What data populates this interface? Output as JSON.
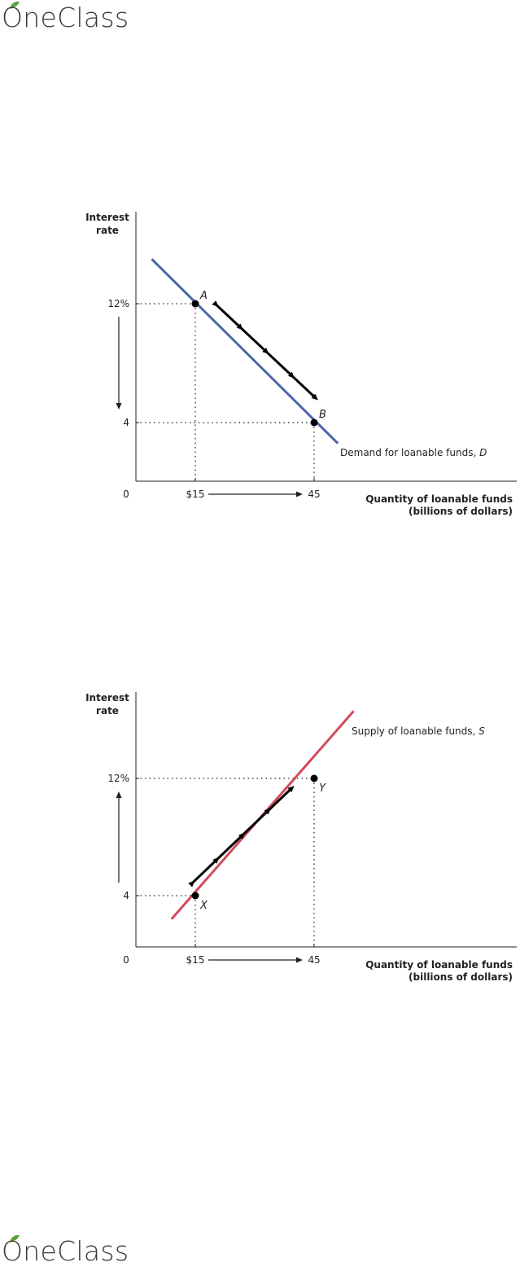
{
  "branding": {
    "logo_text": "OneClass",
    "leaf_color": "#5aa13f"
  },
  "chart_data": [
    {
      "type": "line",
      "ylabel_line1": "Interest",
      "ylabel_line2": "rate",
      "xlabel_line1": "Quantity of loanable funds",
      "xlabel_line2": "(billions of dollars)",
      "origin_label": "0",
      "x_ticks": [
        "$15",
        "45"
      ],
      "x_tick_values": [
        15,
        45
      ],
      "y_ticks": [
        "12%",
        "4"
      ],
      "y_tick_values": [
        12,
        4
      ],
      "series": [
        {
          "name": "Demand for loanable funds, D",
          "label_prefix": "Demand for loanable funds, ",
          "label_var": "D",
          "color": "#4a68a8",
          "x": [
            4,
            51
          ],
          "y": [
            15,
            2.6
          ]
        }
      ],
      "points": [
        {
          "label": "A",
          "x": 15,
          "y": 12
        },
        {
          "label": "B",
          "x": 45,
          "y": 4
        }
      ],
      "movement_arrow": {
        "from": [
          20,
          12
        ],
        "to": [
          46,
          5.5
        ],
        "color": "#000000"
      },
      "axis_arrows": {
        "x": "right",
        "y": "down"
      },
      "xlim": [
        0,
        60
      ],
      "ylim": [
        0,
        18
      ],
      "grid": false
    },
    {
      "type": "line",
      "ylabel_line1": "Interest",
      "ylabel_line2": "rate",
      "xlabel_line1": "Quantity of loanable funds",
      "xlabel_line2": "(billions of dollars)",
      "origin_label": "0",
      "x_ticks": [
        "$15",
        "45"
      ],
      "x_tick_values": [
        15,
        45
      ],
      "y_ticks": [
        "12%",
        "4"
      ],
      "y_tick_values": [
        12,
        4
      ],
      "series": [
        {
          "name": "Supply of loanable funds, S",
          "label_prefix": "Supply of loanable funds, ",
          "label_var": "S",
          "color": "#d64a5b",
          "x": [
            9,
            55
          ],
          "y": [
            2.4,
            16.6
          ]
        }
      ],
      "points": [
        {
          "label": "X",
          "x": 15,
          "y": 4
        },
        {
          "label": "Y",
          "x": 45,
          "y": 12
        }
      ],
      "movement_arrow": {
        "from": [
          14,
          4.8
        ],
        "to": [
          40,
          11.5
        ],
        "color": "#000000"
      },
      "axis_arrows": {
        "x": "right",
        "y": "up"
      },
      "xlim": [
        0,
        60
      ],
      "ylim": [
        0,
        18
      ],
      "grid": false
    }
  ]
}
